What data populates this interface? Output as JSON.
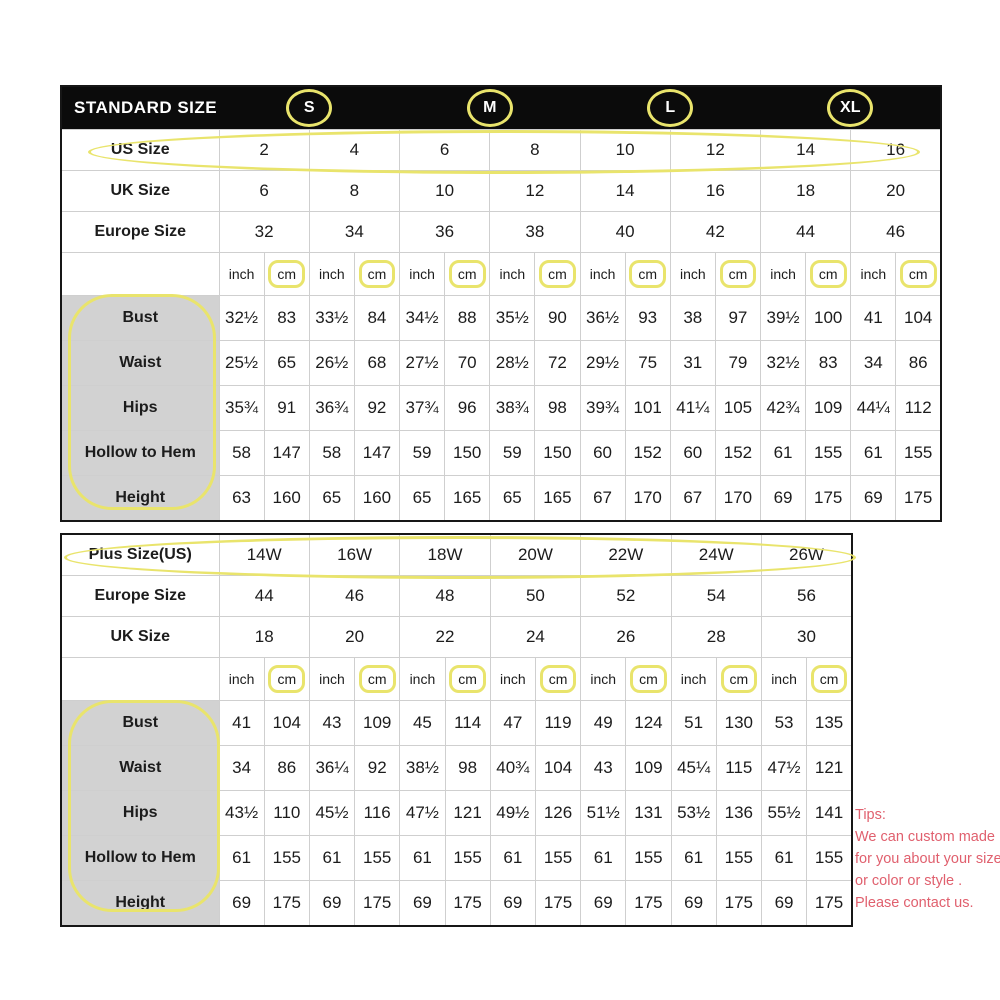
{
  "colors": {
    "annotation_yellow": "#e9e46c",
    "tips_red": "#e0606e",
    "label_gray": "#d2d2d2",
    "header_black": "#0b0b0b"
  },
  "standard_table": {
    "title": "STANDARD SIZE",
    "size_groups": [
      "S",
      "M",
      "L",
      "XL"
    ],
    "units": {
      "inch": "inch",
      "cm": "cm"
    },
    "pairs": 8,
    "size_rows": [
      {
        "label": "US Size",
        "values": [
          "2",
          "4",
          "6",
          "8",
          "10",
          "12",
          "14",
          "16"
        ]
      },
      {
        "label": "UK Size",
        "values": [
          "6",
          "8",
          "10",
          "12",
          "14",
          "16",
          "18",
          "20"
        ]
      },
      {
        "label": "Europe Size",
        "values": [
          "32",
          "34",
          "36",
          "38",
          "40",
          "42",
          "44",
          "46"
        ]
      }
    ],
    "measurement_rows": [
      {
        "label": "Bust",
        "values": [
          "32½",
          "83",
          "33½",
          "84",
          "34½",
          "88",
          "35½",
          "90",
          "36½",
          "93",
          "38",
          "97",
          "39½",
          "100",
          "41",
          "104"
        ]
      },
      {
        "label": "Waist",
        "values": [
          "25½",
          "65",
          "26½",
          "68",
          "27½",
          "70",
          "28½",
          "72",
          "29½",
          "75",
          "31",
          "79",
          "32½",
          "83",
          "34",
          "86"
        ]
      },
      {
        "label": "Hips",
        "values": [
          "35¾",
          "91",
          "36¾",
          "92",
          "37¾",
          "96",
          "38¾",
          "98",
          "39¾",
          "101",
          "41¼",
          "105",
          "42¾",
          "109",
          "44¼",
          "112"
        ]
      },
      {
        "label": "Hollow to Hem",
        "values": [
          "58",
          "147",
          "58",
          "147",
          "59",
          "150",
          "59",
          "150",
          "60",
          "152",
          "60",
          "152",
          "61",
          "155",
          "61",
          "155"
        ]
      },
      {
        "label": "Height",
        "values": [
          "63",
          "160",
          "65",
          "160",
          "65",
          "165",
          "65",
          "165",
          "67",
          "170",
          "67",
          "170",
          "69",
          "175",
          "69",
          "175"
        ]
      }
    ]
  },
  "plus_table": {
    "units": {
      "inch": "inch",
      "cm": "cm"
    },
    "pairs": 7,
    "size_rows": [
      {
        "label": "Plus Size(US)",
        "values": [
          "14W",
          "16W",
          "18W",
          "20W",
          "22W",
          "24W",
          "26W"
        ]
      },
      {
        "label": "Europe Size",
        "values": [
          "44",
          "46",
          "48",
          "50",
          "52",
          "54",
          "56"
        ]
      },
      {
        "label": "UK Size",
        "values": [
          "18",
          "20",
          "22",
          "24",
          "26",
          "28",
          "30"
        ]
      }
    ],
    "measurement_rows": [
      {
        "label": "Bust",
        "values": [
          "41",
          "104",
          "43",
          "109",
          "45",
          "114",
          "47",
          "119",
          "49",
          "124",
          "51",
          "130",
          "53",
          "135"
        ]
      },
      {
        "label": "Waist",
        "values": [
          "34",
          "86",
          "36¼",
          "92",
          "38½",
          "98",
          "40¾",
          "104",
          "43",
          "109",
          "45¼",
          "115",
          "47½",
          "121"
        ]
      },
      {
        "label": "Hips",
        "values": [
          "43½",
          "110",
          "45½",
          "116",
          "47½",
          "121",
          "49½",
          "126",
          "51½",
          "131",
          "53½",
          "136",
          "55½",
          "141"
        ]
      },
      {
        "label": "Hollow to Hem",
        "values": [
          "61",
          "155",
          "61",
          "155",
          "61",
          "155",
          "61",
          "155",
          "61",
          "155",
          "61",
          "155",
          "61",
          "155"
        ]
      },
      {
        "label": "Height",
        "values": [
          "69",
          "175",
          "69",
          "175",
          "69",
          "175",
          "69",
          "175",
          "69",
          "175",
          "69",
          "175",
          "69",
          "175"
        ]
      }
    ]
  },
  "tips": {
    "title": "Tips:",
    "lines": [
      "We can custom made",
      "for you about your size",
      "or color or style .",
      "Please contact us."
    ]
  }
}
